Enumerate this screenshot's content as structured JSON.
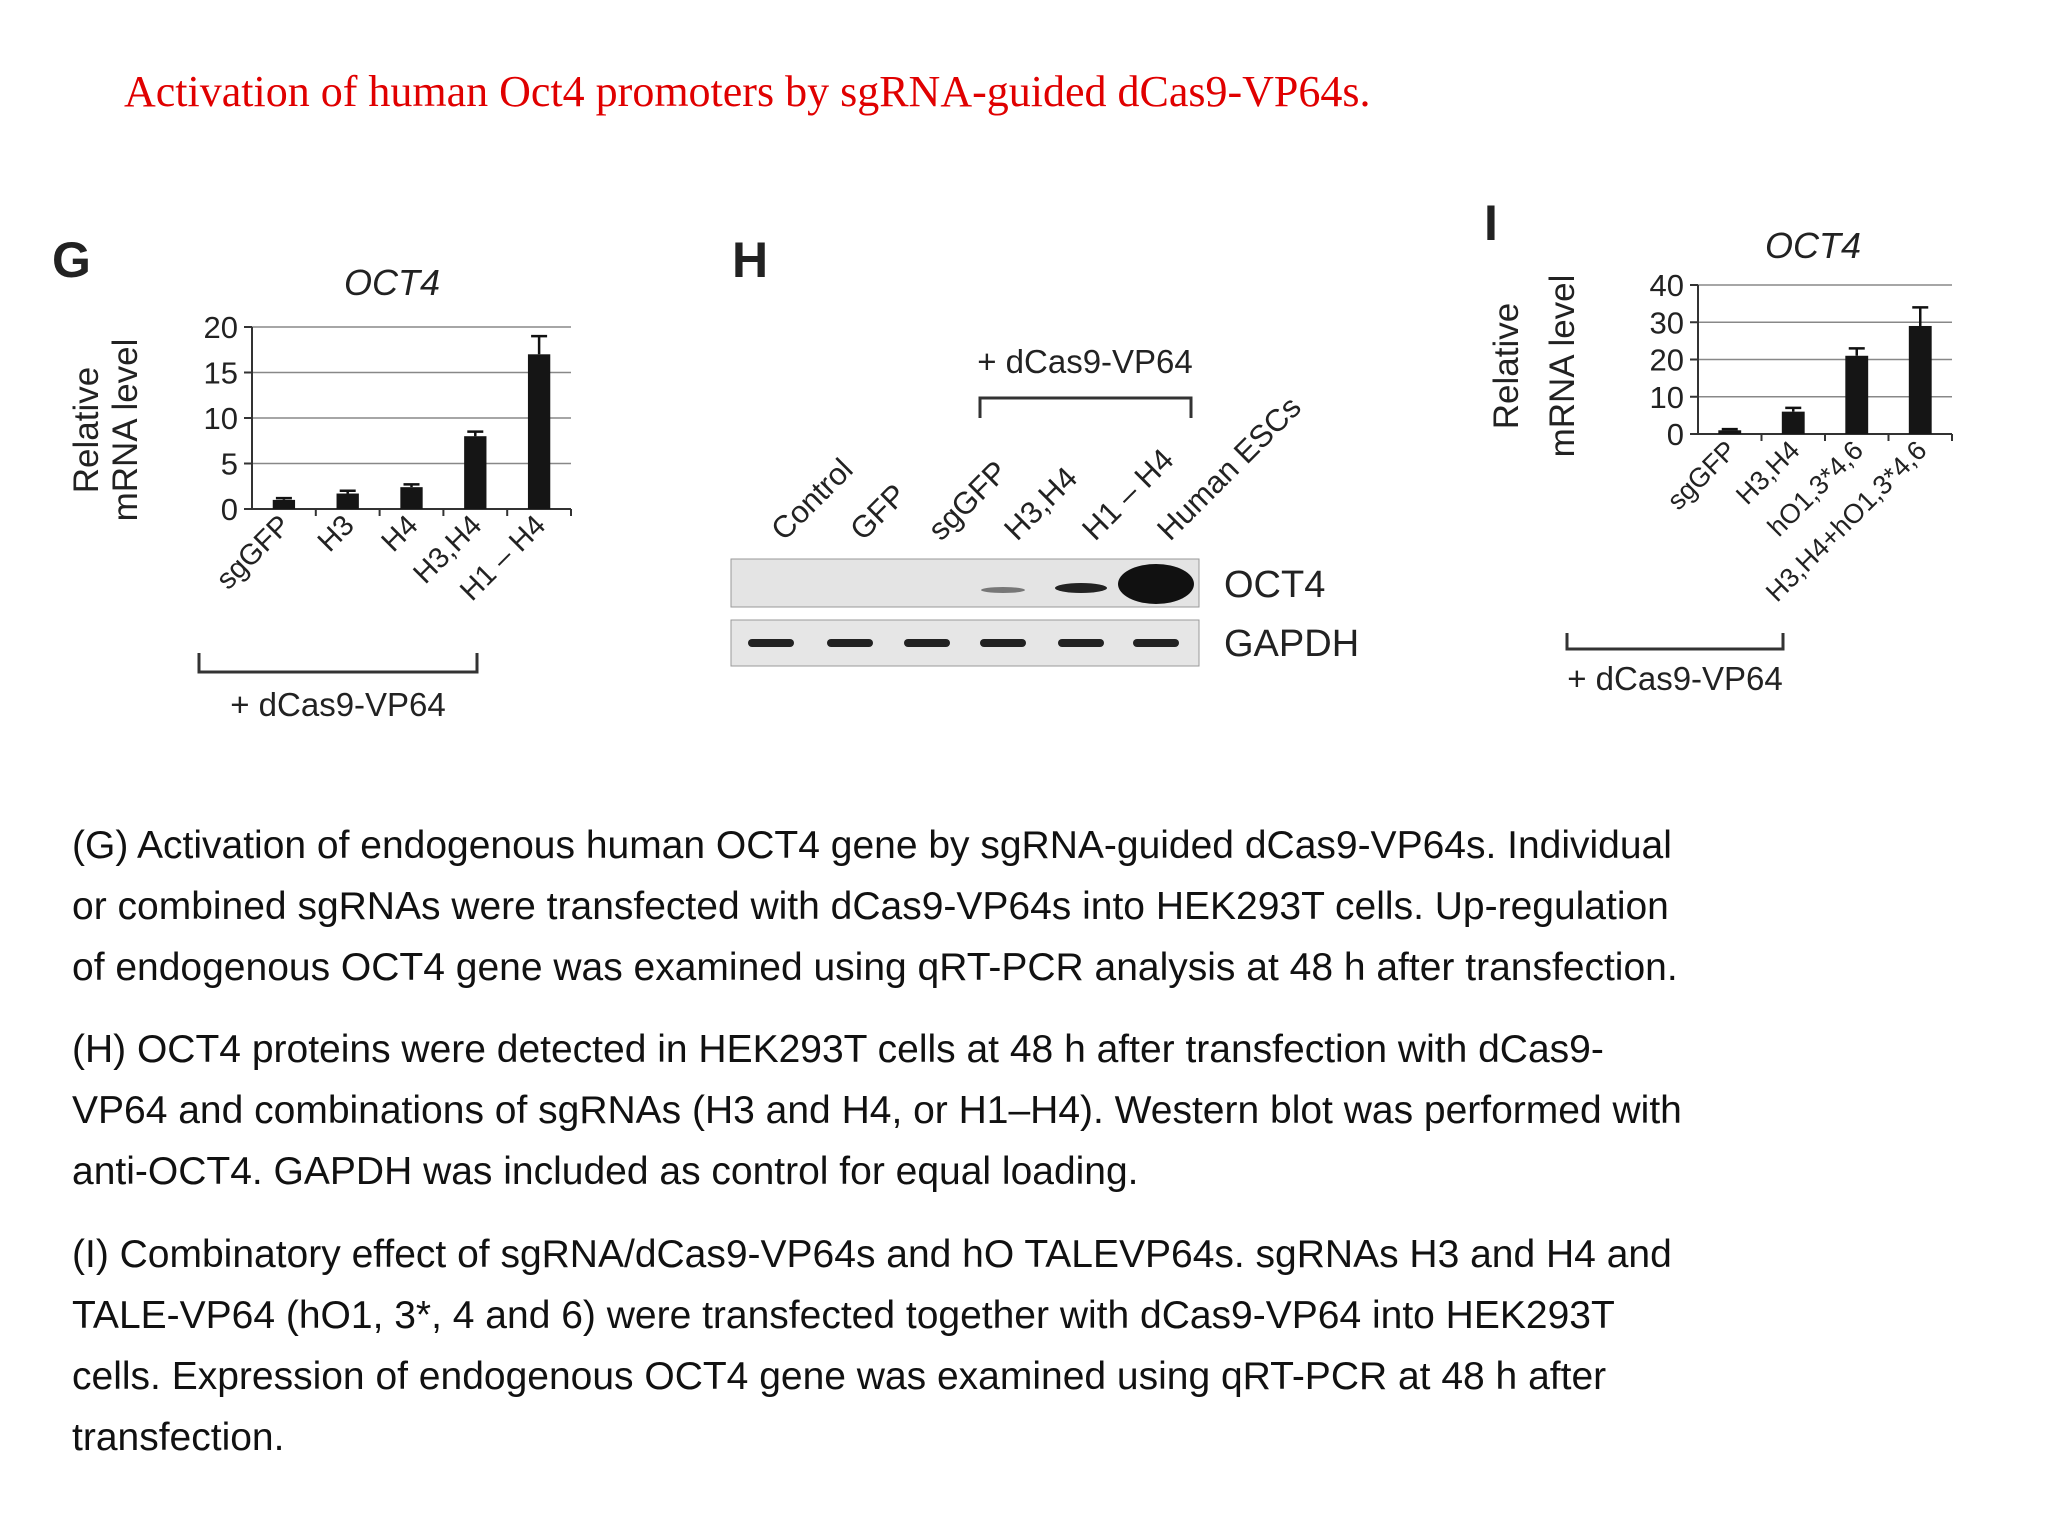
{
  "title": "Activation of human Oct4 promoters by sgRNA-guided dCas9-VP64s.",
  "chart_data": [
    {
      "type": "bar",
      "label": "G",
      "title": "OCT4",
      "ylabel": [
        "Relative",
        "mRNA level"
      ],
      "categories": [
        "sgGFP",
        "H3",
        "H4",
        "H3,H4",
        "H1 – H4"
      ],
      "values": [
        1,
        1.7,
        2.4,
        8,
        17
      ],
      "errors": [
        0.2,
        0.3,
        0.3,
        0.5,
        2
      ],
      "color": "#151515",
      "ylim": [
        0,
        20
      ],
      "yticks": [
        0,
        5,
        10,
        15,
        20
      ],
      "grid": true,
      "bracket_label": "+ dCas9-VP64"
    },
    {
      "type": "bar",
      "label": "I",
      "title": "OCT4",
      "ylabel": [
        "Relative",
        "mRNA level"
      ],
      "categories": [
        "sgGFP",
        "H3,H4",
        "hO1,3*4,6",
        "H3,H4+hO1,3*4,6"
      ],
      "values": [
        1,
        6,
        21,
        29
      ],
      "errors": [
        0.3,
        1,
        2,
        5
      ],
      "color": "#151515",
      "ylim": [
        0,
        40
      ],
      "yticks": [
        0,
        10,
        20,
        30,
        40
      ],
      "grid": true,
      "bracket_label": "+ dCas9-VP64"
    }
  ],
  "panel_h": {
    "label": "H",
    "bracket_label": "+ dCas9-VP64",
    "lanes": [
      "Control",
      "GFP",
      "sgGFP",
      "H3,H4",
      "H1 – H4",
      "Human ESCs"
    ],
    "bands": [
      "OCT4",
      "GAPDH"
    ]
  },
  "captions": [
    [
      "(G) Activation of endogenous human OCT4 gene by sgRNA-guided dCas9-VP64s. Individual",
      "or combined sgRNAs were transfected with dCas9-VP64s into HEK293T cells. Up-regulation",
      "of endogenous OCT4 gene was examined using qRT-PCR analysis at 48 h after transfection."
    ],
    [
      "(H) OCT4 proteins were detected in HEK293T cells at 48 h after transfection with dCas9-",
      "VP64 and combinations of sgRNAs (H3 and H4, or H1–H4). Western blot was performed with",
      "anti-OCT4. GAPDH was included as control for equal loading."
    ],
    [
      "(I) Combinatory effect of sgRNA/dCas9-VP64s and hO TALEVP64s. sgRNAs H3 and H4 and",
      "TALE-VP64 (hO1, 3*, 4 and 6) were transfected together with dCas9-VP64 into HEK293T",
      "cells. Expression of endogenous OCT4 gene was examined using qRT-PCR at 48 h after",
      "transfection."
    ]
  ]
}
